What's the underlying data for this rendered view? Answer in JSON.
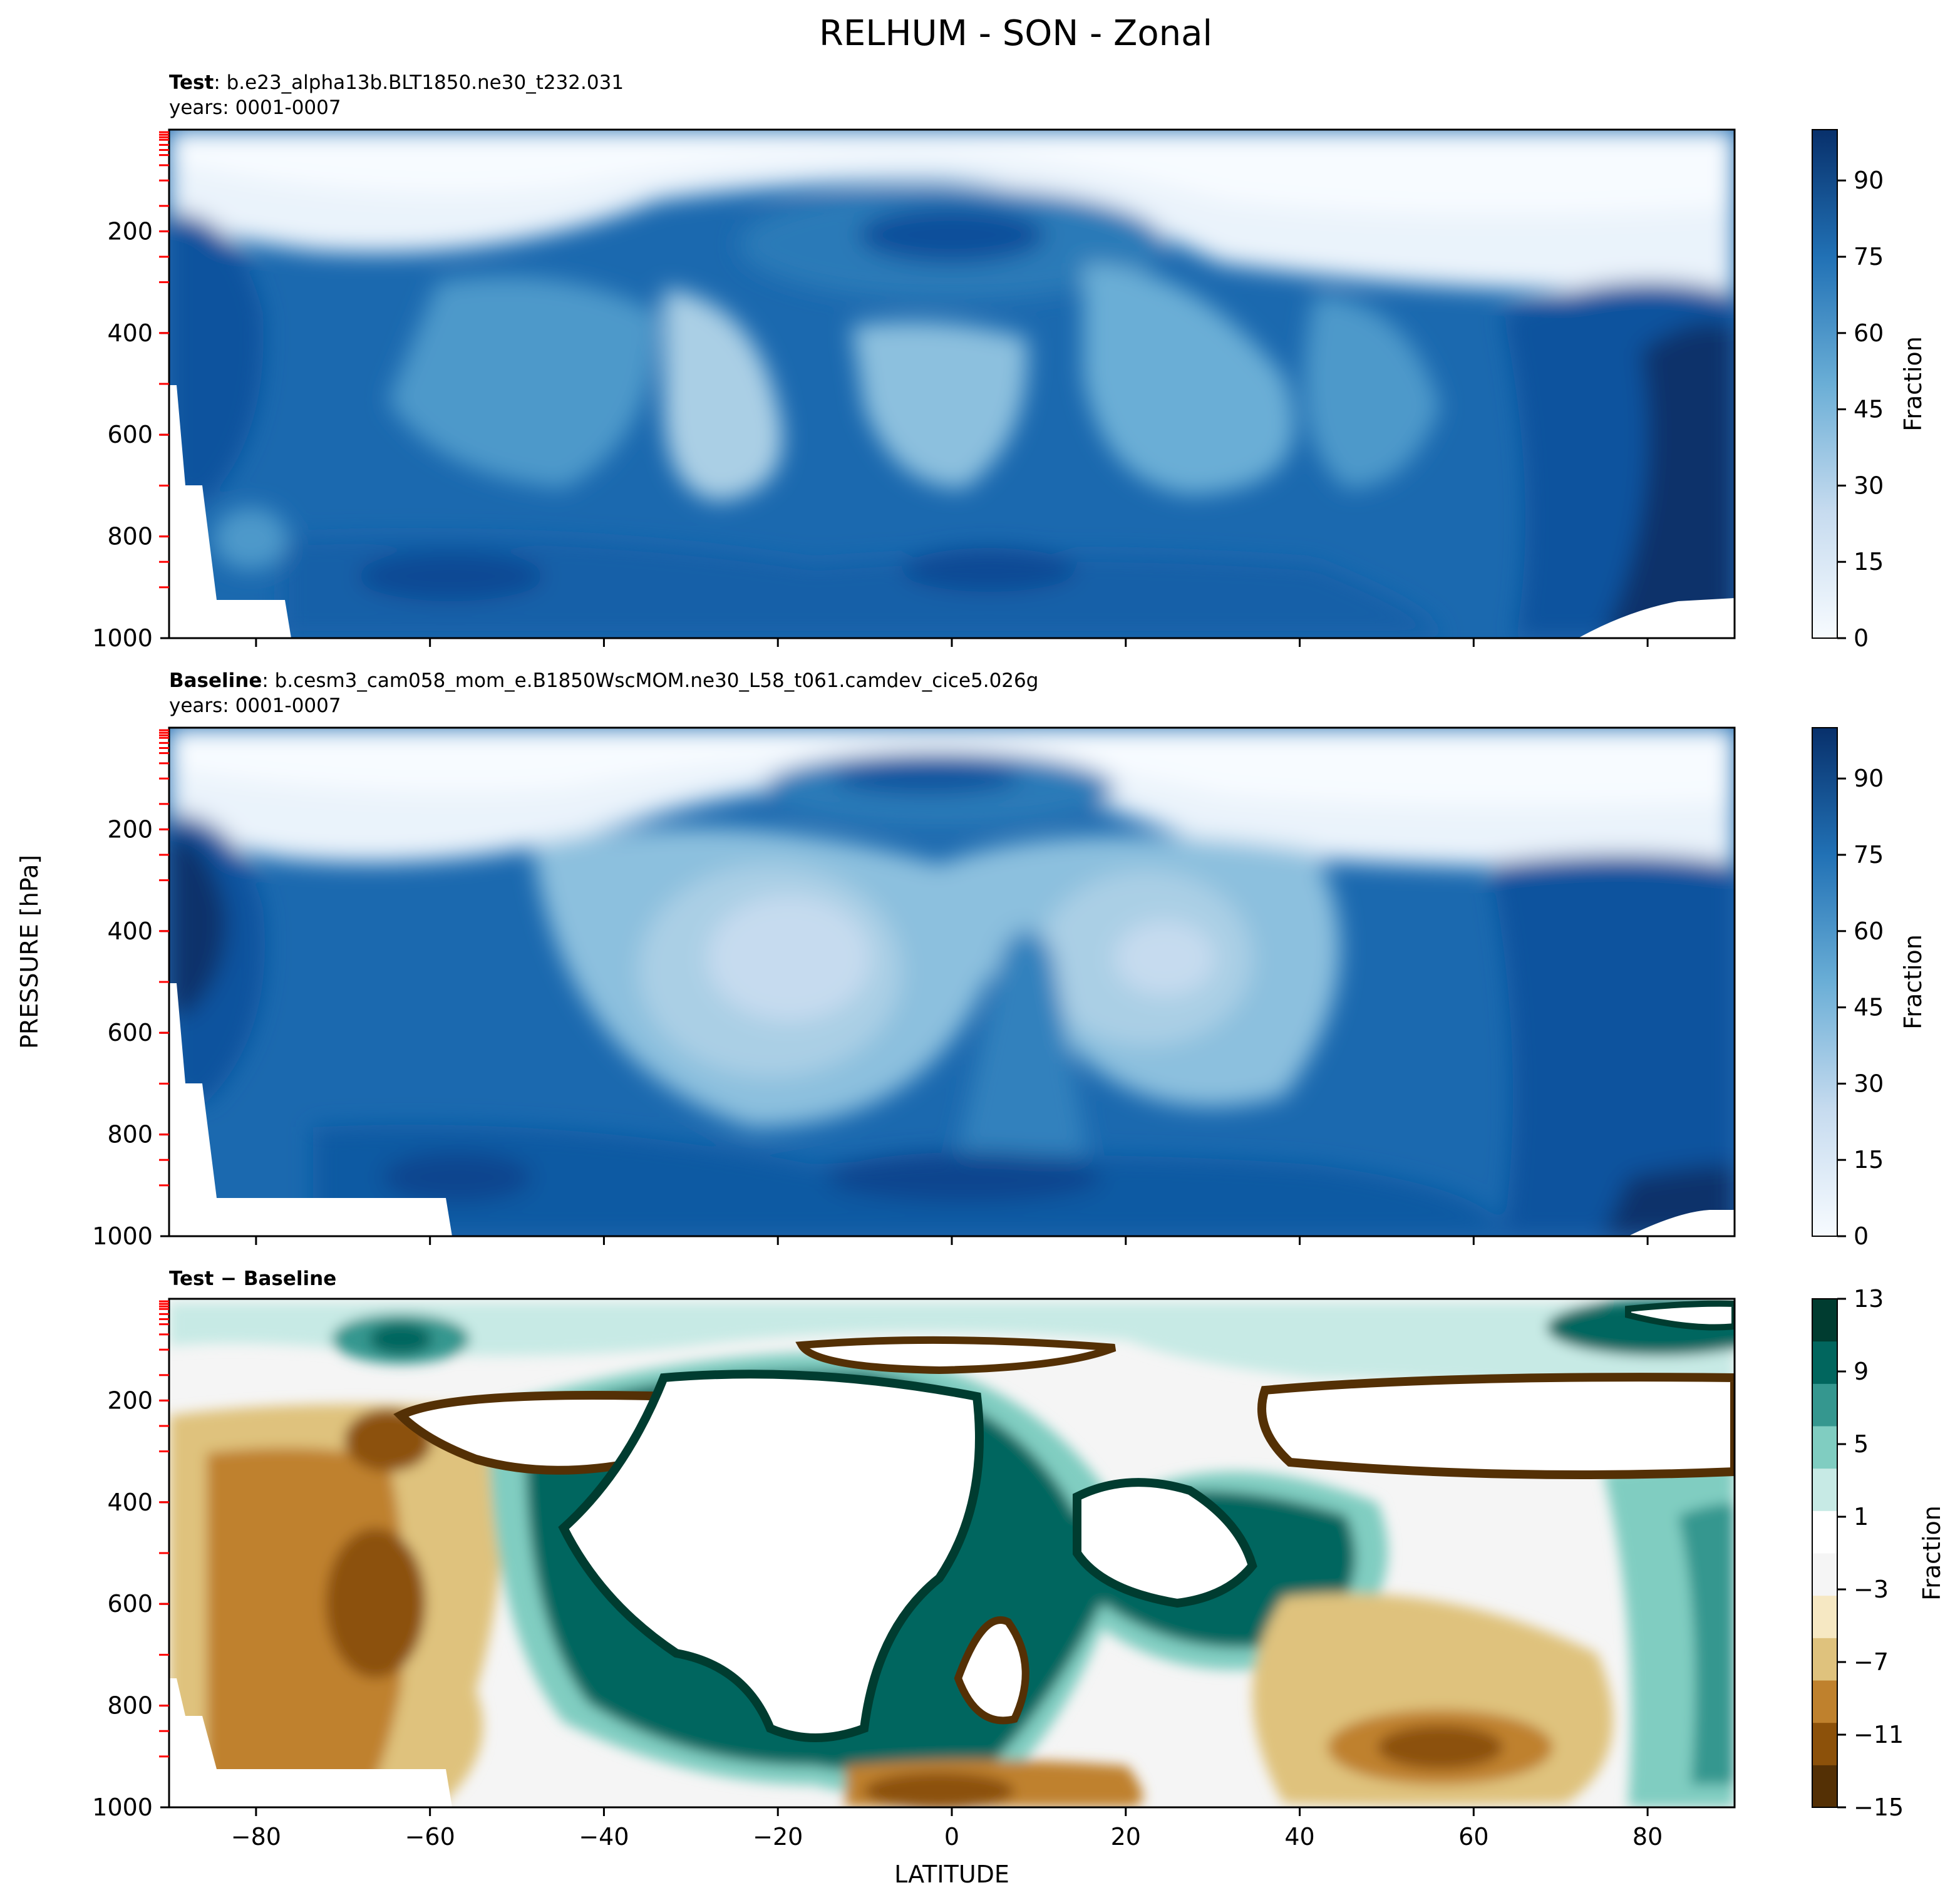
{
  "figure": {
    "title": "RELHUM - SON - Zonal",
    "ylabel": "PRESSURE [hPa]",
    "xlabel": "LATITUDE"
  },
  "panels": [
    {
      "id": "test",
      "title_bold": "Test",
      "title_rest": ": b.e23_alpha13b.BLT1850.ne30_t232.031",
      "subtitle": "years: 0001-0007",
      "colorbar_label": "Fraction"
    },
    {
      "id": "baseline",
      "title_bold": "Baseline",
      "title_rest": ": b.cesm3_cam058_mom_e.B1850WscMOM.ne30_L58_t061.camdev_cice5.026g",
      "subtitle": "years: 0001-0007",
      "colorbar_label": "Fraction"
    },
    {
      "id": "diff",
      "title_bold": "Test − Baseline",
      "title_rest": "",
      "subtitle": "",
      "colorbar_label": "Fraction"
    }
  ],
  "colors": {
    "blues": [
      "#f7fbff",
      "#eaf3fb",
      "#dbe9f6",
      "#c6dbef",
      "#aacfe5",
      "#8cc0de",
      "#6aaed6",
      "#4d99ca",
      "#3181bd",
      "#1b69af",
      "#0a539e",
      "#08306b"
    ],
    "diverging": [
      "#543005",
      "#8c510a",
      "#bf812d",
      "#dfc27d",
      "#f6e8c3",
      "#f5f5f5",
      "#ffffff",
      "#c7eae5",
      "#80cdc1",
      "#35978f",
      "#01665e",
      "#003c30"
    ],
    "tick_marks": "#ff0000"
  },
  "chart_data": [
    {
      "type": "contour",
      "panel": "test",
      "x_axis": {
        "label": "",
        "range": [
          -90,
          90
        ],
        "ticks": [
          -80,
          -60,
          -40,
          -20,
          0,
          20,
          40,
          60,
          80
        ]
      },
      "y_axis": {
        "label": "PRESSURE [hPa]",
        "range": [
          1000,
          0
        ],
        "inverted": true,
        "ticks": [
          200,
          400,
          600,
          800,
          1000
        ]
      },
      "colorbar": {
        "label": "Fraction",
        "range": [
          0,
          100
        ],
        "ticks": [
          0,
          15,
          30,
          45,
          60,
          75,
          90
        ]
      },
      "approx_field": [
        {
          "region": "upper troposphere / stratosphere (p < 200 hPa, |lat| > 30)",
          "value": 5
        },
        {
          "region": "tropical tropopause, lat -20..20, p ~ 120-250 hPa",
          "value": 80
        },
        {
          "region": "mid troposphere subtropics, lat ~ -25 and ~ 0, p ~ 500-700 hPa",
          "value": 38
        },
        {
          "region": "tropical boundary layer, p ~ 850-1000 hPa",
          "value": 80
        },
        {
          "region": "Arctic lower troposphere, lat > 70",
          "value": 95
        },
        {
          "region": "Antarctic troposphere, lat ~ -85, p 300-600 hPa",
          "value": 85
        }
      ]
    },
    {
      "type": "contour",
      "panel": "baseline",
      "x_axis": {
        "label": "",
        "range": [
          -90,
          90
        ],
        "ticks": [
          -80,
          -60,
          -40,
          -20,
          0,
          20,
          40,
          60,
          80
        ]
      },
      "y_axis": {
        "label": "PRESSURE [hPa]",
        "range": [
          1000,
          0
        ],
        "inverted": true,
        "ticks": [
          200,
          400,
          600,
          800,
          1000
        ]
      },
      "colorbar": {
        "label": "Fraction",
        "range": [
          0,
          100
        ],
        "ticks": [
          0,
          15,
          30,
          45,
          60,
          75,
          90
        ]
      },
      "approx_field": [
        {
          "region": "upper troposphere / stratosphere (p < 200 hPa, |lat| > 30)",
          "value": 5
        },
        {
          "region": "tropical tropopause, lat -15..10, p ~ 100-200 hPa",
          "value": 85
        },
        {
          "region": "subtropical dry minima, lat ~ -15 and ~ 25, p ~ 500 hPa",
          "value": 22
        },
        {
          "region": "tropical boundary layer, p ~ 850-1000 hPa",
          "value": 85
        },
        {
          "region": "Arctic troposphere, lat > 70",
          "value": 92
        }
      ]
    },
    {
      "type": "contour",
      "panel": "diff",
      "x_axis": {
        "label": "LATITUDE",
        "range": [
          -90,
          90
        ],
        "ticks": [
          -80,
          -60,
          -40,
          -20,
          0,
          20,
          40,
          60,
          80
        ]
      },
      "y_axis": {
        "label": "PRESSURE [hPa]",
        "range": [
          1000,
          0
        ],
        "inverted": true,
        "ticks": [
          200,
          400,
          600,
          800,
          1000
        ]
      },
      "colorbar": {
        "label": "Fraction",
        "range": [
          -15,
          13
        ],
        "ticks": [
          -15,
          -11,
          -7,
          -3,
          1,
          5,
          9,
          13
        ]
      },
      "approx_field": [
        {
          "region": "tropical mid troposphere, lat -45..-10, p 150-850 hPa",
          "value": 16
        },
        {
          "region": "NH midlatitude mid troposphere, lat 15..45, p 350-600 hPa",
          "value": 16
        },
        {
          "region": "SH midlatitude upper troposphere, lat -60..-30, p ~ 250 hPa",
          "value": -18
        },
        {
          "region": "NH upper troposphere, lat 35..90, p 180-370 hPa",
          "value": -18
        },
        {
          "region": "tropical tropopause, lat -15..15, p ~ 100 hPa",
          "value": -18
        },
        {
          "region": "equatorial lower troposphere, lat ~ 7, p 550-800 hPa",
          "value": -18
        },
        {
          "region": "SH low levels, lat -90..-55, p 200-1000 hPa",
          "value": -6
        },
        {
          "region": "NH low levels, lat 45..65, p 850-950 hPa",
          "value": -10
        },
        {
          "region": "polar lower troposphere, lat > 70",
          "value": 4
        }
      ]
    }
  ]
}
